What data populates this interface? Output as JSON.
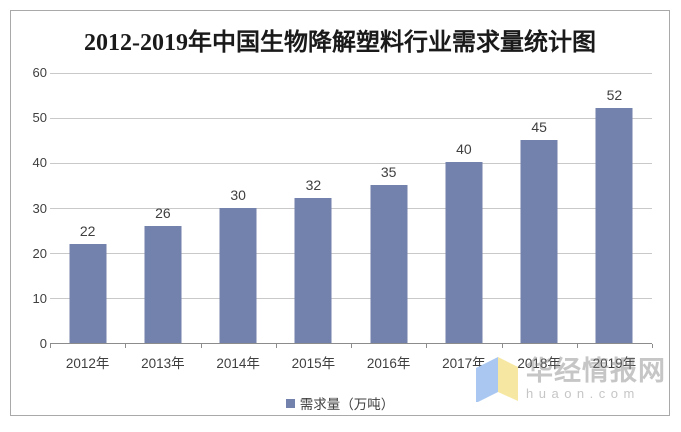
{
  "title": "2012-2019年中国生物降解塑料行业需求量统计图",
  "legend": {
    "label": "需求量（万吨）",
    "marker_color": "#7381ad"
  },
  "watermark": {
    "name": "华经情报网",
    "domain": "huaon.com",
    "logo_blue": "#a9c7f0",
    "logo_yellow": "#f6e8a3"
  },
  "colors": {
    "bar": "#7381ad",
    "gridline": "#c9c9c9",
    "axis": "#8c8c8c",
    "label": "#3f3f3f",
    "frame_border": "#a9a9a9"
  },
  "chart_data": {
    "type": "bar",
    "title": "2012-2019年中国生物降解塑料行业需求量统计图",
    "categories": [
      "2012年",
      "2013年",
      "2014年",
      "2015年",
      "2016年",
      "2017年",
      "2018年",
      "2019年"
    ],
    "values": [
      22,
      26,
      30,
      32,
      35,
      40,
      45,
      52
    ],
    "series_name": "需求量（万吨）",
    "xlabel": "",
    "ylabel": "",
    "ylim": [
      0,
      60
    ],
    "y_ticks": [
      0,
      10,
      20,
      30,
      40,
      50,
      60
    ],
    "grid": true,
    "data_labels": true,
    "legend_position": "bottom"
  }
}
